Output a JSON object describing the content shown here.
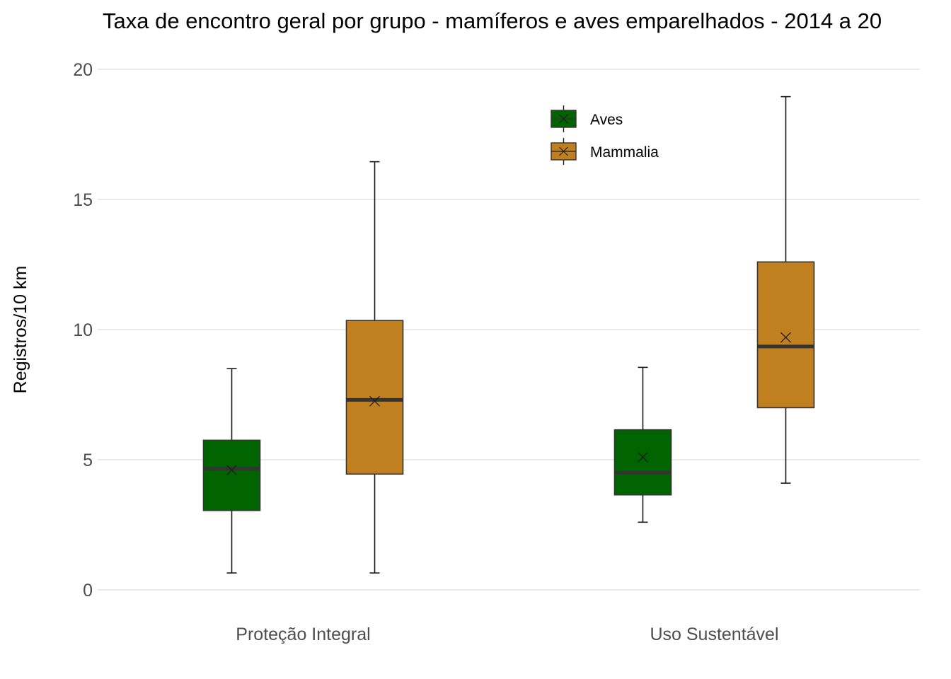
{
  "chart_data": {
    "type": "boxplot",
    "title": "Taxa de encontro geral por grupo - mamíferos e aves emparelhados - 2014 a 20",
    "xlabel": "",
    "ylabel": "Registros/10 km",
    "ylim": [
      0,
      20
    ],
    "yticks": [
      0,
      5,
      10,
      15,
      20
    ],
    "grid": true,
    "legend_position": "top-right",
    "categories": [
      "Proteção Integral",
      "Uso Sustentável"
    ],
    "series": [
      {
        "name": "Aves",
        "color": "#006400",
        "boxes": [
          {
            "min": 0.65,
            "q1": 3.05,
            "median": 4.65,
            "q3": 5.75,
            "max": 8.5,
            "mean": 4.6
          },
          {
            "min": 2.6,
            "q1": 3.65,
            "median": 4.5,
            "q3": 6.15,
            "max": 8.55,
            "mean": 5.1
          }
        ]
      },
      {
        "name": "Mammalia",
        "color": "#c08020",
        "boxes": [
          {
            "min": 0.65,
            "q1": 4.45,
            "median": 7.3,
            "q3": 10.35,
            "max": 16.45,
            "mean": 7.25
          },
          {
            "min": 4.1,
            "q1": 7.0,
            "median": 9.35,
            "q3": 12.6,
            "max": 18.95,
            "mean": 9.7
          }
        ]
      }
    ]
  }
}
